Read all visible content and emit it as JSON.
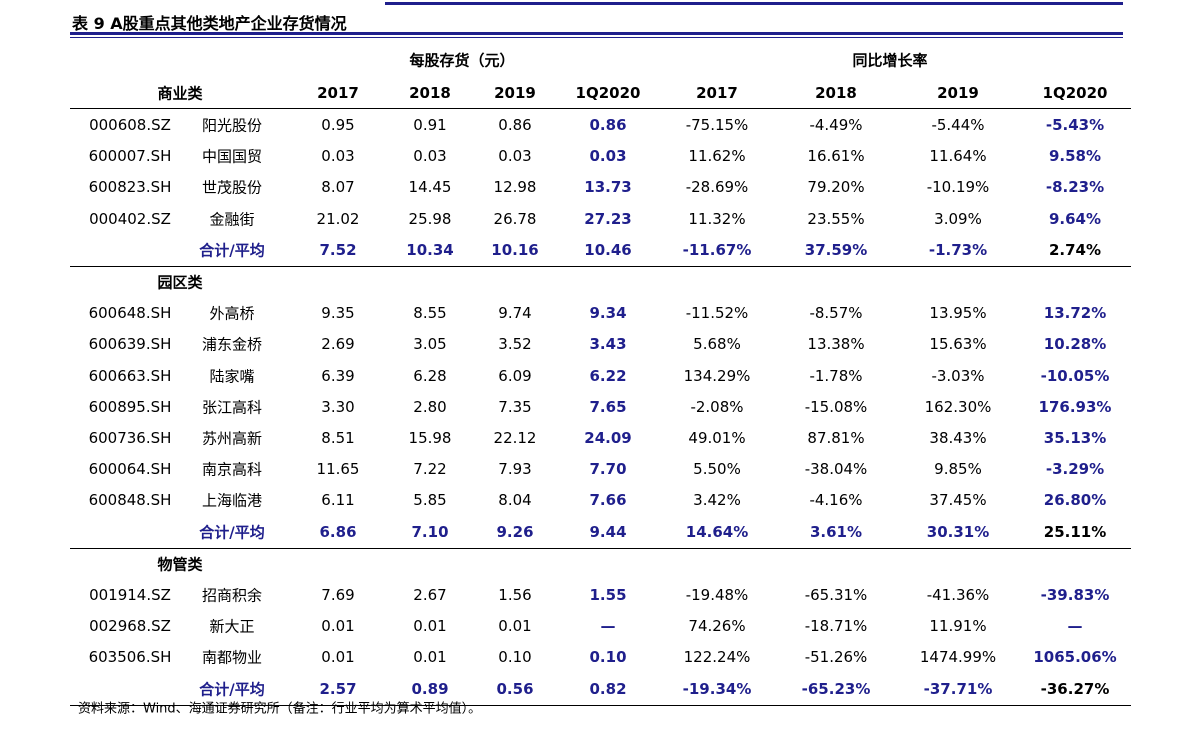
{
  "title": "表 9 A股重点其他类地产企业存货情况",
  "table": {
    "group_headers": [
      "每股存货（元）",
      "同比增长率"
    ],
    "columns": [
      "商业类",
      "2017",
      "2018",
      "2019",
      "1Q2020",
      "2017",
      "2018",
      "2019",
      "1Q2020"
    ],
    "sections": [
      {
        "rows": [
          [
            "000608.SZ",
            "阳光股份",
            "0.95",
            "0.91",
            "0.86",
            "0.86",
            "-75.15%",
            "-4.49%",
            "-5.44%",
            "-5.43%"
          ],
          [
            "600007.SH",
            "中国国贸",
            "0.03",
            "0.03",
            "0.03",
            "0.03",
            "11.62%",
            "16.61%",
            "11.64%",
            "9.58%"
          ],
          [
            "600823.SH",
            "世茂股份",
            "8.07",
            "14.45",
            "12.98",
            "13.73",
            "-28.69%",
            "79.20%",
            "-10.19%",
            "-8.23%"
          ],
          [
            "000402.SZ",
            "金融街",
            "21.02",
            "25.98",
            "26.78",
            "27.23",
            "11.32%",
            "23.55%",
            "3.09%",
            "9.64%"
          ]
        ],
        "total": [
          "合计/平均",
          "7.52",
          "10.34",
          "10.16",
          "10.46",
          "-11.67%",
          "37.59%",
          "-1.73%",
          "2.74%"
        ]
      },
      {
        "name": "园区类",
        "rows": [
          [
            "600648.SH",
            "外高桥",
            "9.35",
            "8.55",
            "9.74",
            "9.34",
            "-11.52%",
            "-8.57%",
            "13.95%",
            "13.72%"
          ],
          [
            "600639.SH",
            "浦东金桥",
            "2.69",
            "3.05",
            "3.52",
            "3.43",
            "5.68%",
            "13.38%",
            "15.63%",
            "10.28%"
          ],
          [
            "600663.SH",
            "陆家嘴",
            "6.39",
            "6.28",
            "6.09",
            "6.22",
            "134.29%",
            "-1.78%",
            "-3.03%",
            "-10.05%"
          ],
          [
            "600895.SH",
            "张江高科",
            "3.30",
            "2.80",
            "7.35",
            "7.65",
            "-2.08%",
            "-15.08%",
            "162.30%",
            "176.93%"
          ],
          [
            "600736.SH",
            "苏州高新",
            "8.51",
            "15.98",
            "22.12",
            "24.09",
            "49.01%",
            "87.81%",
            "38.43%",
            "35.13%"
          ],
          [
            "600064.SH",
            "南京高科",
            "11.65",
            "7.22",
            "7.93",
            "7.70",
            "5.50%",
            "-38.04%",
            "9.85%",
            "-3.29%"
          ],
          [
            "600848.SH",
            "上海临港",
            "6.11",
            "5.85",
            "8.04",
            "7.66",
            "3.42%",
            "-4.16%",
            "37.45%",
            "26.80%"
          ]
        ],
        "total": [
          "合计/平均",
          "6.86",
          "7.10",
          "9.26",
          "9.44",
          "14.64%",
          "3.61%",
          "30.31%",
          "25.11%"
        ]
      },
      {
        "name": "物管类",
        "rows": [
          [
            "001914.SZ",
            "招商积余",
            "7.69",
            "2.67",
            "1.56",
            "1.55",
            "-19.48%",
            "-65.31%",
            "-41.36%",
            "-39.83%"
          ],
          [
            "002968.SZ",
            "新大正",
            "0.01",
            "0.01",
            "0.01",
            "—",
            "74.26%",
            "-18.71%",
            "11.91%",
            "—"
          ],
          [
            "603506.SH",
            "南都物业",
            "0.01",
            "0.01",
            "0.10",
            "0.10",
            "122.24%",
            "-51.26%",
            "1474.99%",
            "1065.06%"
          ]
        ],
        "total": [
          "合计/平均",
          "2.57",
          "0.89",
          "0.56",
          "0.82",
          "-19.34%",
          "-65.23%",
          "-37.71%",
          "-36.27%"
        ]
      }
    ]
  },
  "source": "资料来源：Wind、海通证券研究所（备注：行业平均为算术平均值）。"
}
